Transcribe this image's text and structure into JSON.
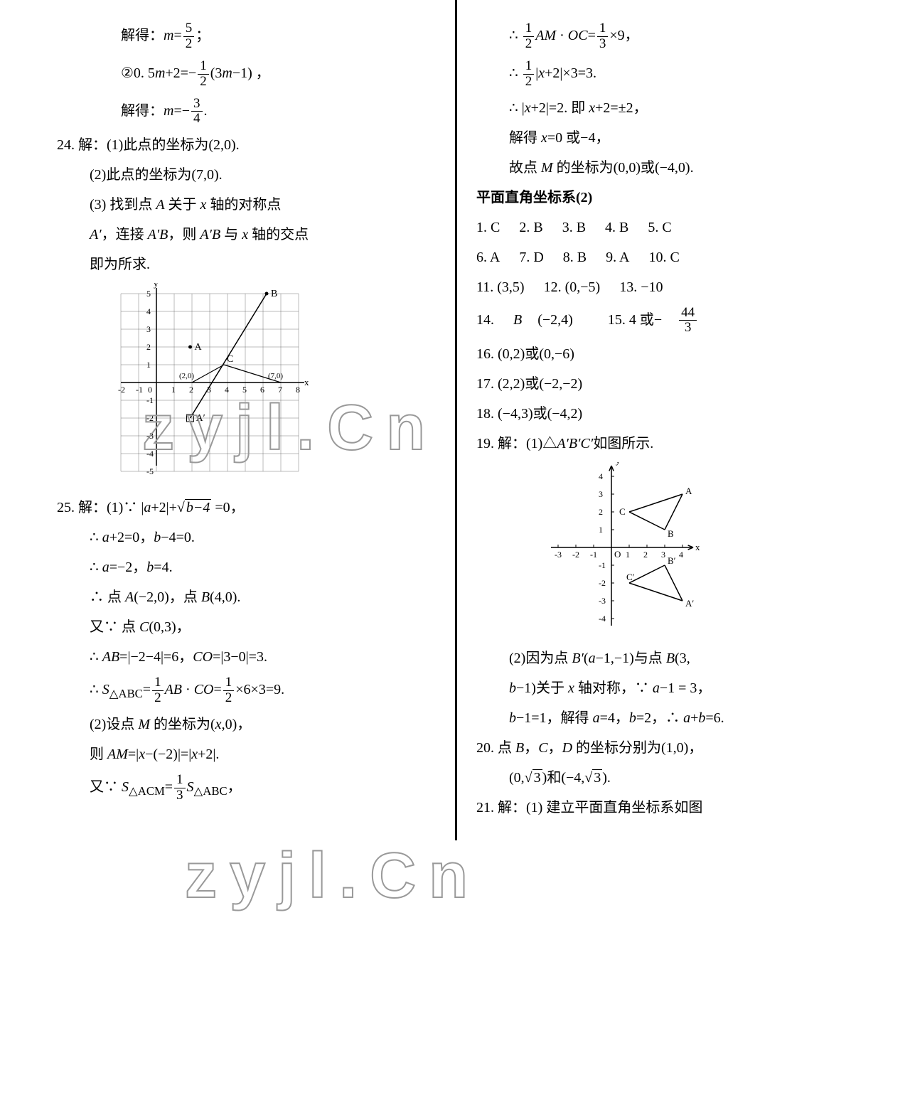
{
  "left": {
    "l1a": "解得：",
    "l1b": "m",
    "l1c": "=",
    "f1n": "5",
    "f1d": "2",
    "l1e": "；",
    "l2a": "②0. 5",
    "l2b": "m",
    "l2c": "+2=−",
    "f2n": "1",
    "f2d": "2",
    "l2d": "(3",
    "l2e": "m",
    "l2f": "−1) ，",
    "l3a": "解得：",
    "l3b": "m",
    "l3c": "=−",
    "f3n": "3",
    "f3d": "4",
    "l3d": ".",
    "p24": "24. 解：(1)此点的坐标为(2,0).",
    "p24_2": "(2)此点的坐标为(7,0).",
    "p24_3a": "(3) 找到点 ",
    "p24_3b": "A",
    "p24_3c": " 关于 ",
    "p24_3d": "x",
    "p24_3e": " 轴的对称点",
    "p24_4a": "A′",
    "p24_4b": "，连接 ",
    "p24_4c": "A′B",
    "p24_4d": "，则 ",
    "p24_4e": "A′B",
    "p24_4f": " 与 ",
    "p24_4g": "x",
    "p24_4h": " 轴的交点",
    "p24_5": "即为所求.",
    "p25a": "25. 解：(1)∵ |",
    "p25b": "a",
    "p25c": "+2|+",
    "p25sqrt": "b−4",
    "p25d": " =0，",
    "p25_2a": "∴ ",
    "p25_2b": "a",
    "p25_2c": "+2=0，",
    "p25_2d": "b",
    "p25_2e": "−4=0.",
    "p25_3a": "∴ ",
    "p25_3b": "a",
    "p25_3c": "=−2，",
    "p25_3d": "b",
    "p25_3e": "=4.",
    "p25_4a": "∴ 点 ",
    "p25_4b": "A",
    "p25_4c": "(−2,0)，点 ",
    "p25_4d": "B",
    "p25_4e": "(4,0).",
    "p25_5a": "又∵ 点 ",
    "p25_5b": "C",
    "p25_5c": "(0,3)，",
    "p25_6a": "∴ ",
    "p25_6b": "AB",
    "p25_6c": "=|−2−4|=6，",
    "p25_6d": "CO",
    "p25_6e": "=|3−0|=3.",
    "p25_7a": "∴ ",
    "p25_7b": "S",
    "p25_7sub": "△ABC",
    "p25_7c": "=",
    "f7n": "1",
    "f7d": "2",
    "p25_7d": "AB",
    "p25_7e": " · ",
    "p25_7f": "CO",
    "p25_7g": "=",
    "f7bn": "1",
    "f7bd": "2",
    "p25_7h": "×6×3=9.",
    "p25_8a": "(2)设点 ",
    "p25_8b": "M",
    "p25_8c": " 的坐标为(",
    "p25_8d": "x",
    "p25_8e": ",0)，",
    "p25_9a": "则 ",
    "p25_9b": "AM",
    "p25_9c": "=|",
    "p25_9d": "x",
    "p25_9e": "−(−2)|=|",
    "p25_9f": "x",
    "p25_9g": "+2|.",
    "p25_10a": "又∵ ",
    "p25_10b": "S",
    "p25_10sub": "△ACM",
    "p25_10c": "=",
    "f10n": "1",
    "f10d": "3",
    "p25_10d": "S",
    "p25_10sub2": "△ABC",
    "p25_10e": "，",
    "chart1": {
      "xrange": [
        -2,
        8
      ],
      "yrange": [
        -5,
        5
      ],
      "A": [
        1.9,
        2.0
      ],
      "B": [
        6.2,
        5.0
      ],
      "C": [
        3.8,
        1.0
      ],
      "Ap": [
        1.9,
        -2.0
      ],
      "p20": [
        2,
        0
      ],
      "p70": [
        7,
        0
      ],
      "grid_color": "#000000",
      "stroke_width": 1
    }
  },
  "right": {
    "r1a": "∴ ",
    "rf1n": "1",
    "rf1d": "2",
    "r1b": "AM",
    "r1c": " · ",
    "r1d": "OC",
    "r1e": "=",
    "rf1bn": "1",
    "rf1bd": "3",
    "r1f": "×9，",
    "r2a": "∴ ",
    "rf2n": "1",
    "rf2d": "2",
    "r2b": "|",
    "r2c": "x",
    "r2d": "+2|×3=3.",
    "r3a": "∴ |",
    "r3b": "x",
    "r3c": "+2|=2. 即 ",
    "r3d": "x",
    "r3e": "+2=±2，",
    "r4a": "解得 ",
    "r4b": "x",
    "r4c": "=0 或−4，",
    "r5a": "故点 ",
    "r5b": "M",
    "r5c": " 的坐标为(0,0)或(−4,0).",
    "section": "平面直角坐标系(2)",
    "ans1": "1. C",
    "ans2": "2. B",
    "ans3": "3. B",
    "ans4": "4. B",
    "ans5": "5. C",
    "ans6": "6. A",
    "ans7": "7. D",
    "ans8": "8. B",
    "ans9": "9. A",
    "ans10": "10. C",
    "ans11": "11. (3,5)",
    "ans12": "12. (0,−5)",
    "ans13": "13. −10",
    "ans14a": "14. ",
    "ans14b": "B",
    "ans14c": "(−2,4)",
    "ans15a": "15. 4 或−",
    "f15n": "44",
    "f15d": "3",
    "ans16": "16. (0,2)或(0,−6)",
    "ans17": "17. (2,2)或(−2,−2)",
    "ans18": "18. (−4,3)或(−4,2)",
    "p19a": "19. 解：(1)△",
    "p19b": "A′B′C′",
    "p19c": "如图所示.",
    "p19_2a": "(2)因为点 ",
    "p19_2b": "B′",
    "p19_2c": "(",
    "p19_2d": "a",
    "p19_2e": "−1,−1)与点 ",
    "p19_2f": "B",
    "p19_2g": "(3,",
    "p19_3a": "b",
    "p19_3b": "−1)关于 ",
    "p19_3c": "x",
    "p19_3d": " 轴对称，∵ ",
    "p19_3e": "a",
    "p19_3f": "−1 = 3，",
    "p19_4a": "b",
    "p19_4b": "−1=1，解得 ",
    "p19_4c": "a",
    "p19_4d": "=4，",
    "p19_4e": "b",
    "p19_4f": "=2，∴ ",
    "p19_4g": "a",
    "p19_4h": "+",
    "p19_4i": "b",
    "p19_4j": "=6.",
    "p20a": "20. 点 ",
    "p20b": "B",
    "p20c": "，",
    "p20d": "C",
    "p20e": "，",
    "p20f": "D",
    "p20g": " 的坐标分别为(1,0)，",
    "p20_2a": "(0,",
    "p20_2sqrt": "3",
    "p20_2b": ")和(−4,",
    "p20_2sqrt2": "3",
    "p20_2c": ").",
    "p21": "21. 解：(1) 建立平面直角坐标系如图",
    "chart2": {
      "xrange": [
        -3,
        4
      ],
      "yrange": [
        -4,
        4
      ],
      "A": [
        4,
        3
      ],
      "B": [
        3,
        1
      ],
      "C": [
        1,
        2
      ],
      "Ap": [
        4,
        -3
      ],
      "Bp": [
        3,
        -1
      ],
      "Cp": [
        1,
        -2
      ]
    }
  },
  "watermarks": {
    "w1": "zyjl.Cn",
    "w2": "zyjl.Cn"
  }
}
